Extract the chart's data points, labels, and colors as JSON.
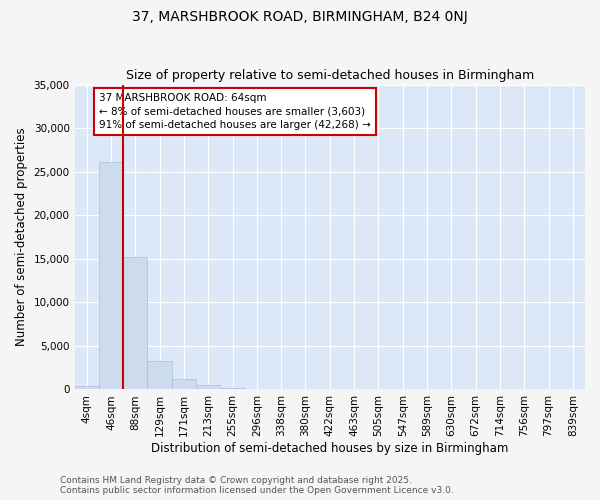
{
  "title_line1": "37, MARSHBROOK ROAD, BIRMINGHAM, B24 0NJ",
  "title_line2": "Size of property relative to semi-detached houses in Birmingham",
  "xlabel": "Distribution of semi-detached houses by size in Birmingham",
  "ylabel": "Number of semi-detached properties",
  "bar_color": "#ccdcec",
  "bar_edge_color": "#aac0d8",
  "plot_bg_color": "#dce8f8",
  "fig_bg_color": "#f5f5f5",
  "grid_color": "#ffffff",
  "categories": [
    "4sqm",
    "46sqm",
    "88sqm",
    "129sqm",
    "171sqm",
    "213sqm",
    "255sqm",
    "296sqm",
    "338sqm",
    "380sqm",
    "422sqm",
    "463sqm",
    "505sqm",
    "547sqm",
    "589sqm",
    "630sqm",
    "672sqm",
    "714sqm",
    "756sqm",
    "797sqm",
    "839sqm"
  ],
  "values": [
    400,
    26100,
    15200,
    3300,
    1200,
    500,
    200,
    50,
    0,
    0,
    0,
    0,
    0,
    0,
    0,
    0,
    0,
    0,
    0,
    0,
    0
  ],
  "ylim": [
    0,
    35000
  ],
  "yticks": [
    0,
    5000,
    10000,
    15000,
    20000,
    25000,
    30000,
    35000
  ],
  "vline_x_index": 1.5,
  "annotation_line1": "37 MARSHBROOK ROAD: 64sqm",
  "annotation_line2": "← 8% of semi-detached houses are smaller (3,603)",
  "annotation_line3": "91% of semi-detached houses are larger (42,268) →",
  "annotation_color": "#cc0000",
  "vline_color": "#cc0000",
  "footer_line1": "Contains HM Land Registry data © Crown copyright and database right 2025.",
  "footer_line2": "Contains public sector information licensed under the Open Government Licence v3.0.",
  "title_fontsize": 10,
  "subtitle_fontsize": 9,
  "axis_label_fontsize": 8.5,
  "tick_fontsize": 7.5,
  "annotation_fontsize": 7.5,
  "footer_fontsize": 6.5
}
